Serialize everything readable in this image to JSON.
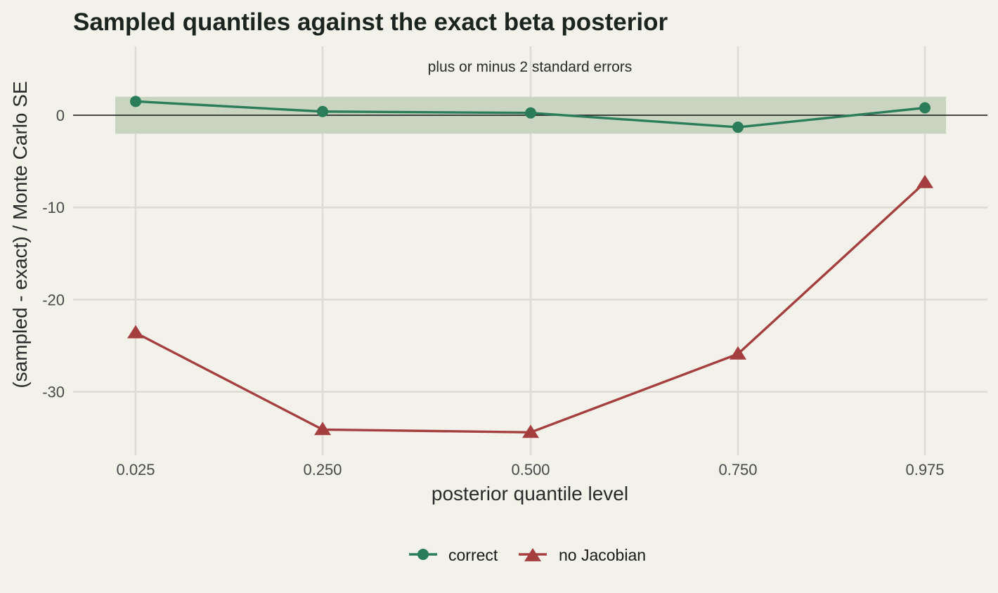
{
  "colors": {
    "background": "#f2f1ea",
    "band": "#c9d5c0",
    "correct": "#2a7d58",
    "no_jacobian": "#a53f3f",
    "grid": "#dcdcd4",
    "zero_line": "#111111"
  },
  "chart_data": {
    "type": "line",
    "title": "Sampled quantiles against the exact beta posterior",
    "annotation": "plus or minus 2 standard errors",
    "xlabel": "posterior quantile level",
    "ylabel": "(sampled - exact) / Monte Carlo SE",
    "categories": [
      "0.025",
      "0.250",
      "0.500",
      "0.750",
      "0.975"
    ],
    "ylim": [
      -35.5,
      7.5
    ],
    "yticks": [
      0,
      -10,
      -20,
      -30
    ],
    "band": [
      -2,
      2
    ],
    "reference_line": 0,
    "grid": true,
    "legend_position": "bottom",
    "series": [
      {
        "name": "correct",
        "marker": "circle",
        "values": [
          1.5,
          0.4,
          0.25,
          -1.3,
          0.8
        ]
      },
      {
        "name": "no Jacobian",
        "marker": "triangle",
        "values": [
          -23.6,
          -34.1,
          -34.4,
          -25.9,
          -7.3
        ]
      }
    ]
  }
}
